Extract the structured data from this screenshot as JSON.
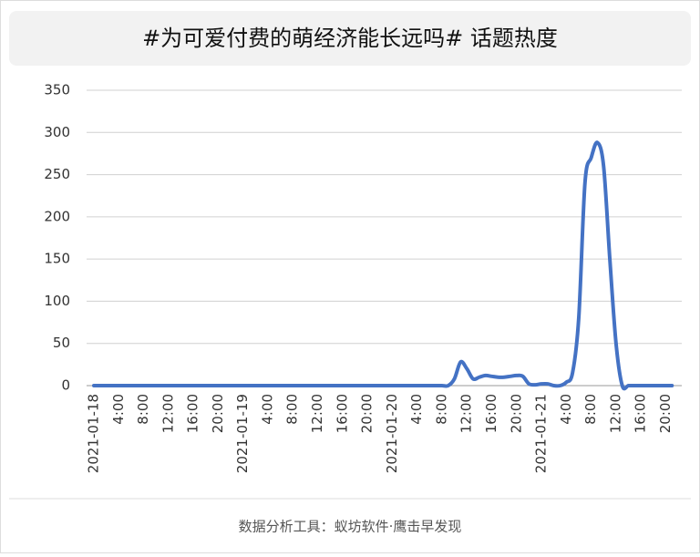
{
  "chart_data": {
    "type": "line",
    "title": "#为可爱付费的萌经济能长远吗# 话题热度",
    "footer": "数据分析工具：蚁坊软件·鹰击早发现",
    "categories": [
      "2021-01-18",
      null,
      null,
      null,
      "4:00",
      null,
      null,
      null,
      "8:00",
      null,
      null,
      null,
      "12:00",
      null,
      null,
      null,
      "16:00",
      null,
      null,
      null,
      "20:00",
      null,
      null,
      null,
      "2021-01-19",
      null,
      null,
      null,
      "4:00",
      null,
      null,
      null,
      "8:00",
      null,
      null,
      null,
      "12:00",
      null,
      null,
      null,
      "16:00",
      null,
      null,
      null,
      "20:00",
      null,
      null,
      null,
      "2021-01-20",
      null,
      null,
      null,
      "4:00",
      null,
      null,
      null,
      "8:00",
      null,
      null,
      null,
      "12:00",
      null,
      null,
      null,
      "16:00",
      null,
      null,
      null,
      "20:00",
      null,
      null,
      null,
      "2021-01-21",
      null,
      null,
      null,
      "4:00",
      null,
      null,
      null,
      "8:00",
      null,
      null,
      null,
      "12:00",
      null,
      null,
      null,
      "16:00",
      null,
      null,
      null,
      "20:00",
      null
    ],
    "series": [
      {
        "name": "话题热度",
        "color": "#4472c4",
        "values": [
          0,
          0,
          0,
          0,
          0,
          0,
          0,
          0,
          0,
          0,
          0,
          0,
          0,
          0,
          0,
          0,
          0,
          0,
          0,
          0,
          0,
          0,
          0,
          0,
          0,
          0,
          0,
          0,
          0,
          0,
          0,
          0,
          0,
          0,
          0,
          0,
          0,
          0,
          0,
          0,
          0,
          0,
          0,
          0,
          0,
          0,
          0,
          0,
          0,
          0,
          0,
          0,
          0,
          0,
          0,
          0,
          0,
          0,
          8,
          28,
          20,
          8,
          10,
          12,
          11,
          10,
          10,
          11,
          12,
          11,
          2,
          1,
          2,
          2,
          0,
          0,
          4,
          15,
          80,
          240,
          270,
          288,
          260,
          150,
          50,
          0,
          0,
          0,
          0,
          0,
          0,
          0,
          0,
          0
        ]
      }
    ],
    "ylim": [
      0,
      350
    ],
    "yticks": [
      0,
      50,
      100,
      150,
      200,
      250,
      300,
      350
    ],
    "grid": true
  }
}
